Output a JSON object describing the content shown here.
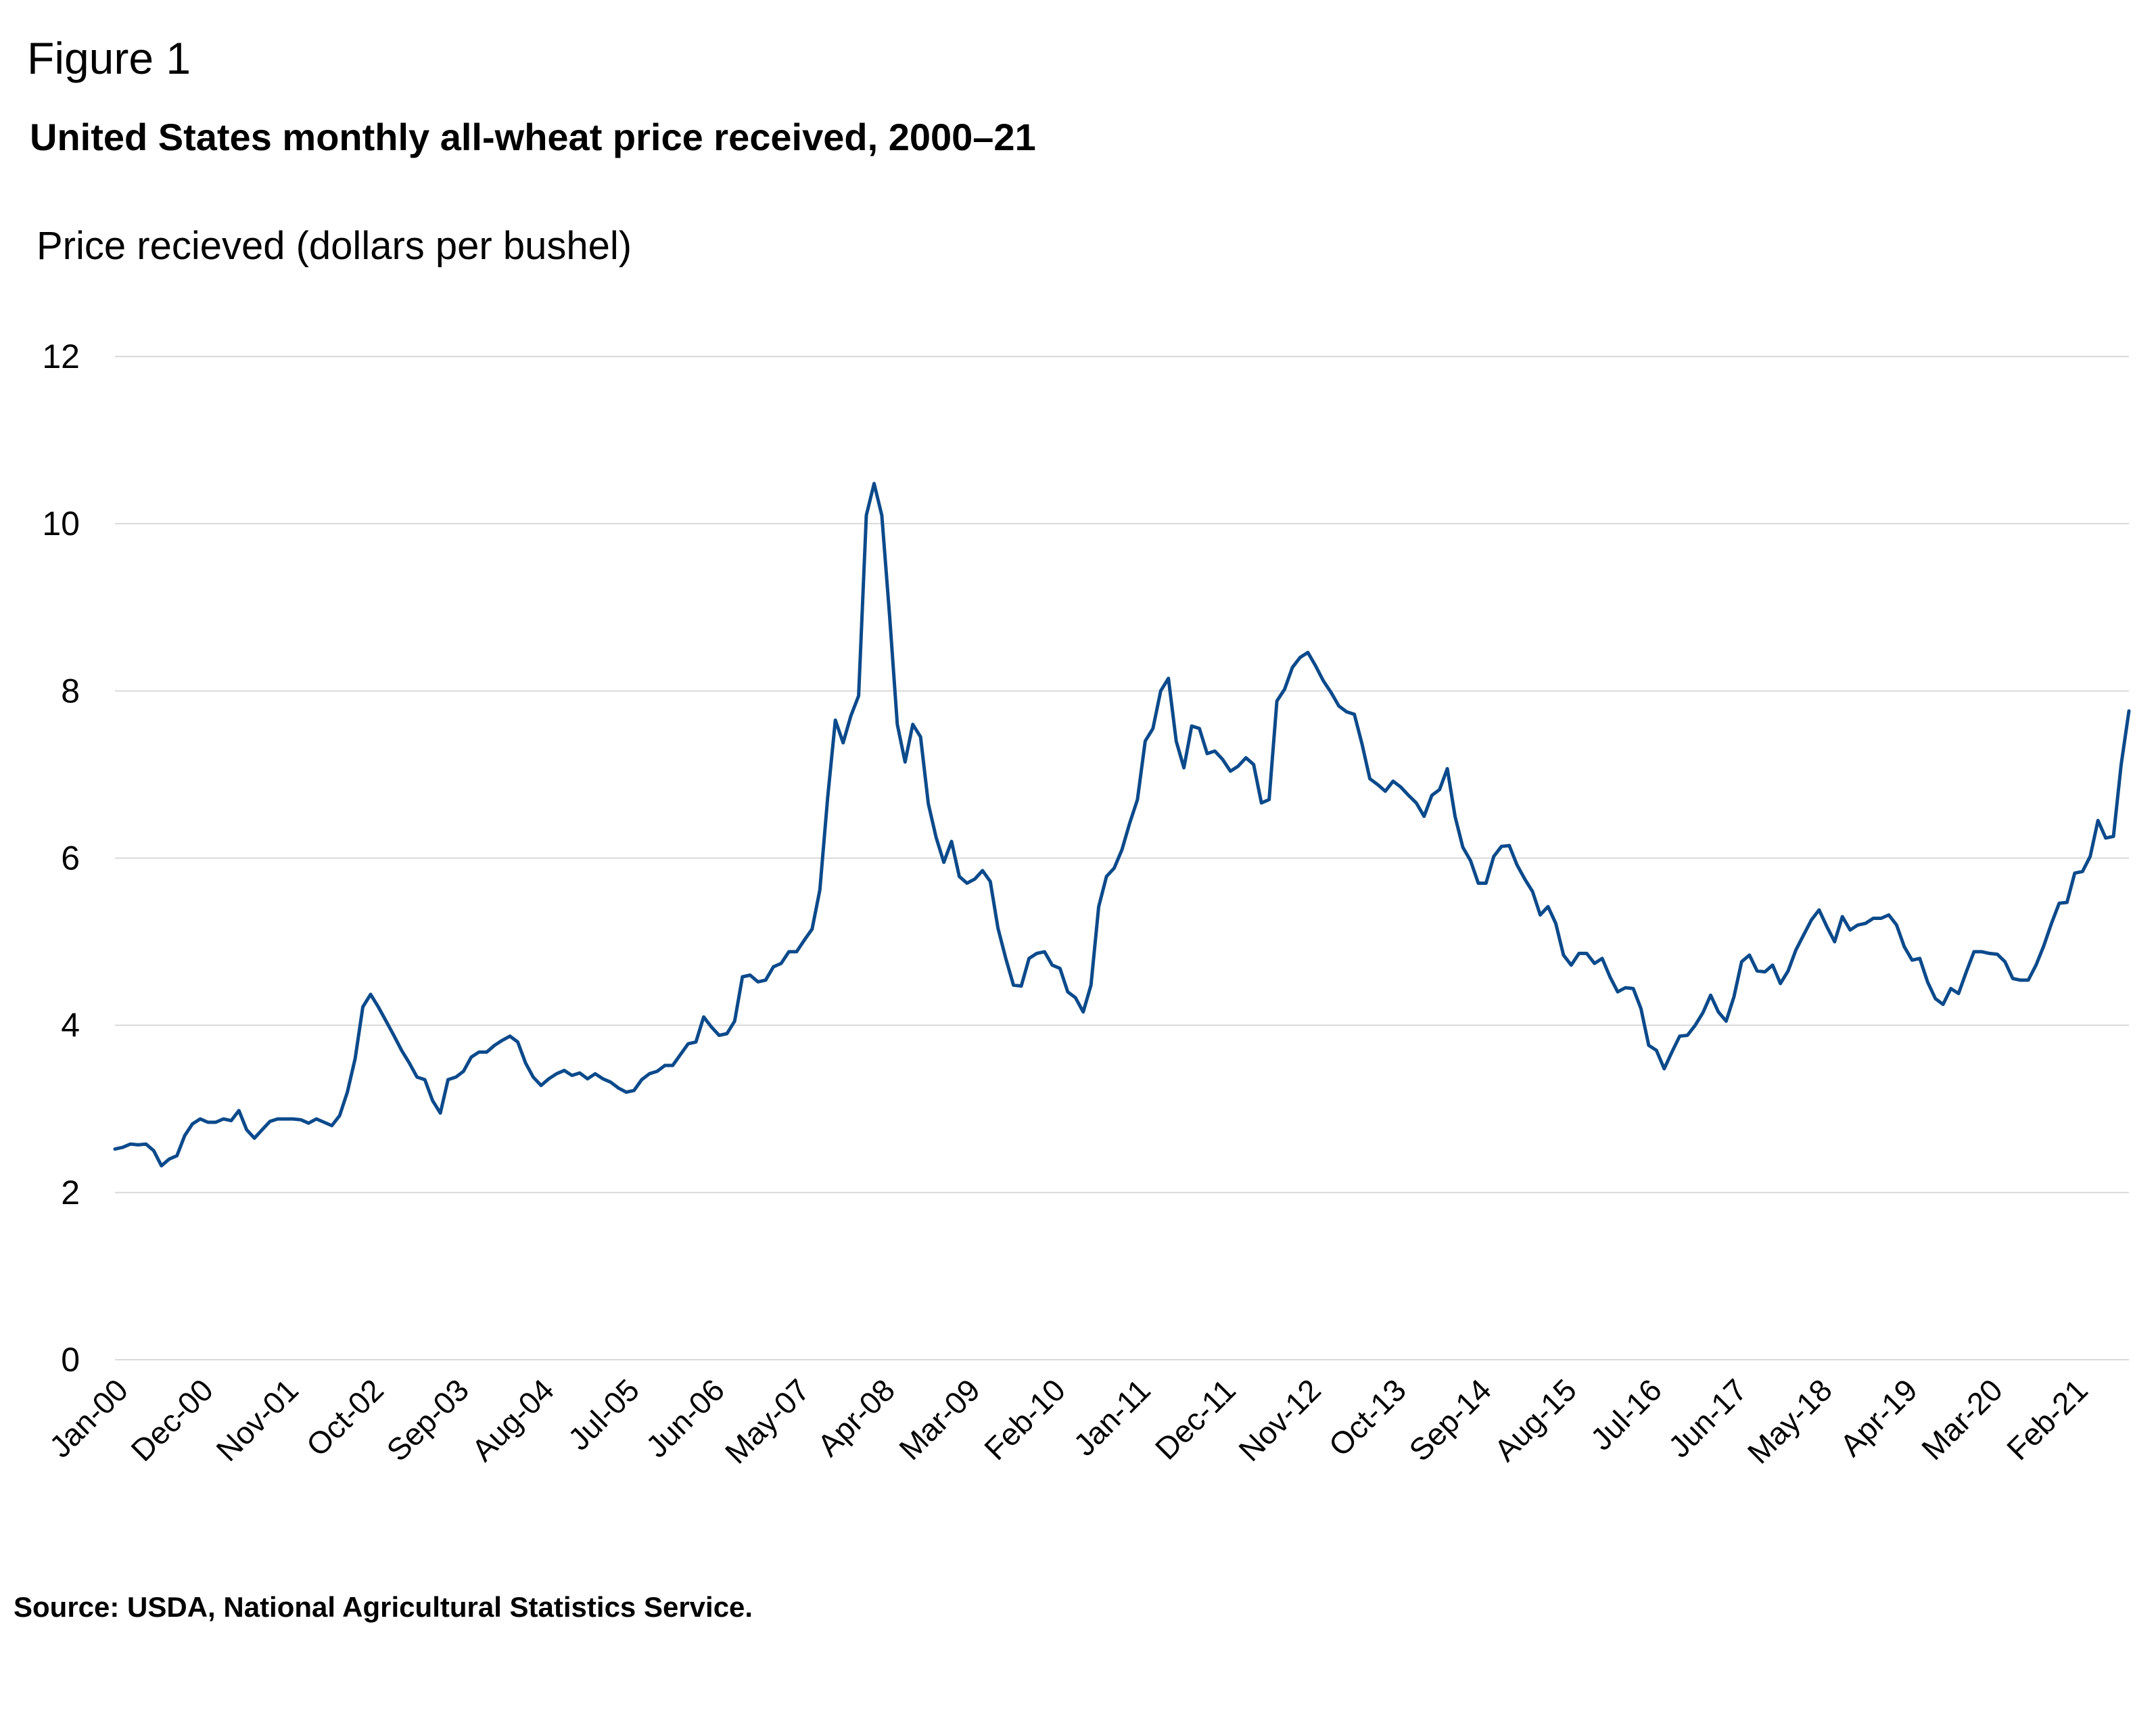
{
  "figure_label": "Figure 1",
  "source": "Source: USDA, National Agricultural Statistics Service.",
  "chart_data": {
    "type": "line",
    "title": "United States monthly all-wheat price received, 2000–21",
    "ylabel": "Price recieved (dollars per bushel)",
    "xlabel": "",
    "ylim": [
      0,
      12
    ],
    "yticks": [
      0,
      2,
      4,
      6,
      8,
      10,
      12
    ],
    "grid": true,
    "xticks": [
      "Jan-00",
      "Dec-00",
      "Nov-01",
      "Oct-02",
      "Sep-03",
      "Aug-04",
      "Jul-05",
      "Jun-06",
      "May-07",
      "Apr-08",
      "Mar-09",
      "Feb-10",
      "Jan-11",
      "Dec-11",
      "Nov-12",
      "Oct-13",
      "Sep-14",
      "Aug-15",
      "Jul-16",
      "Jun-17",
      "May-18",
      "Apr-19",
      "Mar-20",
      "Feb-21"
    ],
    "xtick_interval_months": 11,
    "series_color": "#0b4a8b",
    "series": [
      {
        "values": [
          2.52,
          2.54,
          2.58,
          2.57,
          2.58,
          2.5,
          2.32,
          2.4,
          2.44,
          2.68,
          2.82,
          2.88,
          2.84,
          2.84,
          2.88,
          2.86,
          2.98,
          2.75,
          2.65,
          2.75,
          2.85,
          2.88,
          2.88,
          2.88,
          2.87,
          2.83,
          2.88,
          2.84,
          2.8,
          2.92,
          3.2,
          3.6,
          4.22,
          4.37,
          4.22,
          4.05,
          3.88,
          3.7,
          3.55,
          3.38,
          3.35,
          3.1,
          2.95,
          3.35,
          3.38,
          3.45,
          3.62,
          3.68,
          3.68,
          3.76,
          3.82,
          3.87,
          3.8,
          3.55,
          3.38,
          3.28,
          3.36,
          3.42,
          3.46,
          3.4,
          3.43,
          3.36,
          3.42,
          3.36,
          3.32,
          3.25,
          3.2,
          3.22,
          3.35,
          3.42,
          3.45,
          3.52,
          3.52,
          3.65,
          3.78,
          3.8,
          4.1,
          3.98,
          3.88,
          3.9,
          4.05,
          4.58,
          4.6,
          4.52,
          4.54,
          4.7,
          4.74,
          4.88,
          4.88,
          5.02,
          5.15,
          5.62,
          6.72,
          7.65,
          7.38,
          7.7,
          7.94,
          10.1,
          10.48,
          10.1,
          8.9,
          7.6,
          7.15,
          7.6,
          7.45,
          6.65,
          6.25,
          5.95,
          6.2,
          5.78,
          5.7,
          5.75,
          5.85,
          5.72,
          5.16,
          4.8,
          4.48,
          4.47,
          4.8,
          4.86,
          4.88,
          4.72,
          4.68,
          4.4,
          4.33,
          4.16,
          4.48,
          5.42,
          5.78,
          5.88,
          6.1,
          6.42,
          6.7,
          7.4,
          7.55,
          8.0,
          8.15,
          7.4,
          7.08,
          7.58,
          7.55,
          7.25,
          7.28,
          7.18,
          7.04,
          7.1,
          7.2,
          7.12,
          6.66,
          6.7,
          7.88,
          8.02,
          8.28,
          8.4,
          8.46,
          8.3,
          8.12,
          7.98,
          7.82,
          7.75,
          7.72,
          7.36,
          6.95,
          6.88,
          6.8,
          6.92,
          6.85,
          6.75,
          6.66,
          6.5,
          6.75,
          6.82,
          7.07,
          6.5,
          6.13,
          5.97,
          5.7,
          5.7,
          6.02,
          6.14,
          6.15,
          5.92,
          5.75,
          5.6,
          5.32,
          5.42,
          5.22,
          4.84,
          4.72,
          4.86,
          4.86,
          4.74,
          4.8,
          4.58,
          4.4,
          4.45,
          4.44,
          4.2,
          3.76,
          3.7,
          3.48,
          3.68,
          3.87,
          3.88,
          4.0,
          4.15,
          4.36,
          4.16,
          4.05,
          4.34,
          4.76,
          4.84,
          4.65,
          4.64,
          4.72,
          4.5,
          4.65,
          4.9,
          5.08,
          5.26,
          5.38,
          5.18,
          5.0,
          5.3,
          5.14,
          5.2,
          5.22,
          5.28,
          5.28,
          5.32,
          5.2,
          4.94,
          4.78,
          4.8,
          4.52,
          4.32,
          4.25,
          4.44,
          4.38,
          4.64,
          4.88,
          4.88,
          4.86,
          4.85,
          4.76,
          4.56,
          4.54,
          4.54,
          4.72,
          4.95,
          5.22,
          5.46,
          5.47,
          5.82,
          5.84,
          6.02,
          6.45,
          6.24,
          6.26,
          7.12,
          7.76
        ]
      }
    ]
  }
}
